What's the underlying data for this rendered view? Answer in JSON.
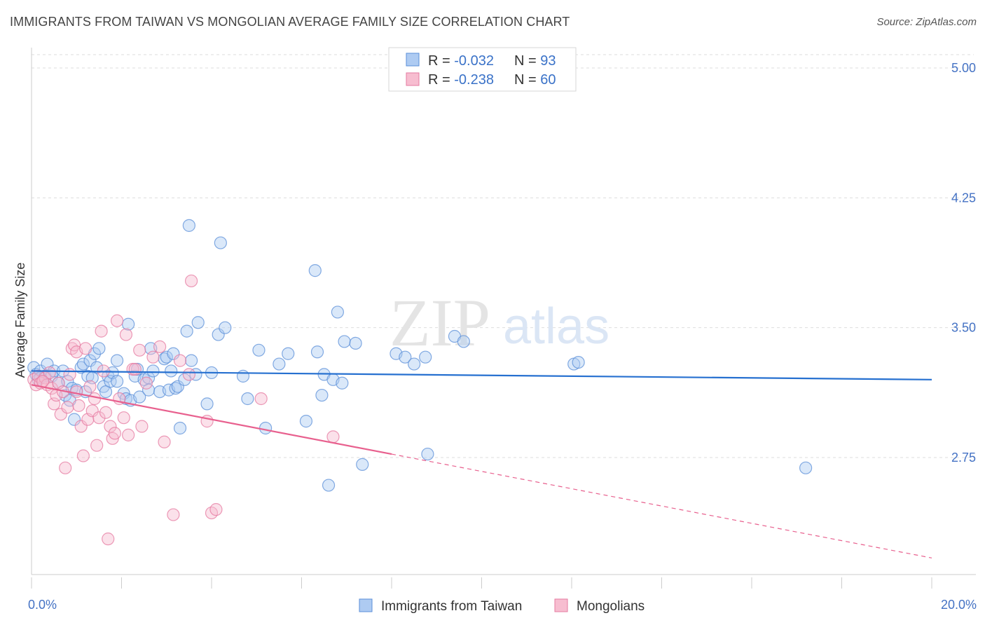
{
  "header": {
    "title": "IMMIGRANTS FROM TAIWAN VS MONGOLIAN AVERAGE FAMILY SIZE CORRELATION CHART",
    "source": "Source: ZipAtlas.com"
  },
  "watermark": {
    "zip": "ZIP",
    "atlas": "atlas"
  },
  "stats": [
    {
      "r_label": "R = ",
      "r_value": "-0.032",
      "n_label": "N = ",
      "n_value": "93"
    },
    {
      "r_label": "R = ",
      "r_value": "-0.238",
      "n_label": "N = ",
      "n_value": "60"
    }
  ],
  "colors": {
    "taiwan_fill": "#aecbf2",
    "taiwan_stroke": "#5b8fd8",
    "taiwan_line": "#2670d0",
    "mongol_fill": "#f7bdd0",
    "mongol_stroke": "#e57aa0",
    "mongol_line": "#e8608e",
    "grid": "#dddddd",
    "tick_text": "#4472c4"
  },
  "chart_data": {
    "type": "scatter",
    "title": "IMMIGRANTS FROM TAIWAN VS MONGOLIAN AVERAGE FAMILY SIZE CORRELATION CHART",
    "xlabel": "",
    "ylabel": "Average Family Size",
    "xlim": [
      0,
      20
    ],
    "ylim": [
      2.05,
      5.1
    ],
    "x_tick_labels": [
      "0.0%",
      "20.0%"
    ],
    "y_ticks": [
      2.75,
      3.5,
      4.25,
      5.0
    ],
    "y_tick_labels": [
      "2.75",
      "3.50",
      "4.25",
      "5.00"
    ],
    "grid": true,
    "legend_position": "bottom-center",
    "series": [
      {
        "name": "Immigrants from Taiwan",
        "color": "#5b8fd8",
        "trend": {
          "x": [
            0,
            20
          ],
          "y": [
            3.25,
            3.2
          ]
        },
        "points": [
          [
            0.05,
            3.27
          ],
          [
            0.1,
            3.23
          ],
          [
            0.15,
            3.2
          ],
          [
            0.2,
            3.25
          ],
          [
            0.3,
            3.22
          ],
          [
            0.35,
            3.29
          ],
          [
            0.45,
            3.22
          ],
          [
            0.5,
            3.25
          ],
          [
            0.6,
            3.18
          ],
          [
            0.7,
            3.25
          ],
          [
            0.75,
            3.11
          ],
          [
            0.8,
            3.19
          ],
          [
            0.85,
            3.08
          ],
          [
            0.9,
            3.15
          ],
          [
            0.95,
            2.97
          ],
          [
            1.0,
            3.14
          ],
          [
            1.1,
            3.27
          ],
          [
            1.15,
            3.29
          ],
          [
            1.2,
            3.13
          ],
          [
            1.25,
            3.22
          ],
          [
            1.3,
            3.31
          ],
          [
            1.4,
            3.35
          ],
          [
            1.45,
            3.27
          ],
          [
            1.5,
            3.38
          ],
          [
            1.6,
            3.16
          ],
          [
            1.65,
            3.13
          ],
          [
            1.7,
            3.22
          ],
          [
            1.75,
            3.19
          ],
          [
            1.8,
            3.24
          ],
          [
            1.9,
            3.19
          ],
          [
            1.9,
            3.31
          ],
          [
            2.05,
            3.12
          ],
          [
            2.1,
            3.09
          ],
          [
            2.15,
            3.52
          ],
          [
            2.2,
            3.08
          ],
          [
            2.3,
            3.22
          ],
          [
            2.35,
            3.26
          ],
          [
            2.4,
            3.1
          ],
          [
            2.5,
            3.2
          ],
          [
            2.6,
            3.21
          ],
          [
            2.6,
            3.14
          ],
          [
            2.65,
            3.38
          ],
          [
            2.7,
            3.25
          ],
          [
            2.85,
            3.13
          ],
          [
            2.95,
            3.32
          ],
          [
            3.0,
            3.33
          ],
          [
            3.05,
            3.14
          ],
          [
            3.1,
            3.25
          ],
          [
            3.15,
            3.35
          ],
          [
            3.2,
            3.15
          ],
          [
            3.25,
            3.16
          ],
          [
            3.3,
            2.92
          ],
          [
            3.4,
            3.2
          ],
          [
            3.45,
            3.48
          ],
          [
            3.5,
            4.09
          ],
          [
            3.55,
            3.31
          ],
          [
            3.65,
            3.23
          ],
          [
            3.7,
            3.53
          ],
          [
            3.9,
            3.06
          ],
          [
            4.0,
            3.24
          ],
          [
            4.15,
            3.46
          ],
          [
            4.2,
            3.99
          ],
          [
            4.3,
            3.5
          ],
          [
            4.7,
            3.22
          ],
          [
            4.8,
            3.09
          ],
          [
            5.05,
            3.37
          ],
          [
            5.2,
            2.92
          ],
          [
            5.5,
            3.29
          ],
          [
            5.7,
            3.35
          ],
          [
            6.1,
            2.96
          ],
          [
            6.3,
            3.83
          ],
          [
            6.35,
            3.36
          ],
          [
            6.45,
            3.11
          ],
          [
            6.5,
            3.23
          ],
          [
            6.6,
            2.59
          ],
          [
            6.7,
            3.2
          ],
          [
            6.8,
            3.59
          ],
          [
            6.9,
            3.18
          ],
          [
            6.95,
            3.42
          ],
          [
            7.2,
            3.41
          ],
          [
            7.35,
            2.71
          ],
          [
            8.1,
            3.35
          ],
          [
            8.3,
            3.33
          ],
          [
            8.5,
            3.29
          ],
          [
            8.75,
            3.33
          ],
          [
            8.8,
            2.77
          ],
          [
            9.4,
            3.45
          ],
          [
            9.6,
            3.42
          ],
          [
            12.05,
            3.29
          ],
          [
            12.15,
            3.3
          ],
          [
            17.2,
            2.69
          ],
          [
            0.2,
            3.21
          ],
          [
            1.35,
            3.21
          ]
        ]
      },
      {
        "name": "Mongolians",
        "color": "#e57aa0",
        "trend": {
          "x": [
            0,
            8.0
          ],
          "y": [
            3.17,
            2.77
          ],
          "dashed_x": [
            8.0,
            20
          ],
          "dashed_y": [
            2.77,
            2.17
          ]
        },
        "points": [
          [
            0.05,
            3.2
          ],
          [
            0.1,
            3.17
          ],
          [
            0.15,
            3.22
          ],
          [
            0.2,
            3.18
          ],
          [
            0.3,
            3.21
          ],
          [
            0.35,
            3.17
          ],
          [
            0.4,
            3.24
          ],
          [
            0.45,
            3.15
          ],
          [
            0.5,
            3.06
          ],
          [
            0.55,
            3.11
          ],
          [
            0.6,
            3.18
          ],
          [
            0.65,
            3.0
          ],
          [
            0.7,
            3.13
          ],
          [
            0.75,
            2.69
          ],
          [
            0.8,
            3.04
          ],
          [
            0.85,
            3.23
          ],
          [
            0.9,
            3.38
          ],
          [
            0.95,
            3.4
          ],
          [
            1.0,
            3.36
          ],
          [
            1.05,
            3.05
          ],
          [
            1.1,
            2.93
          ],
          [
            1.15,
            2.76
          ],
          [
            1.2,
            3.38
          ],
          [
            1.25,
            2.97
          ],
          [
            1.3,
            3.16
          ],
          [
            1.35,
            3.02
          ],
          [
            1.4,
            3.09
          ],
          [
            1.45,
            2.82
          ],
          [
            1.5,
            2.98
          ],
          [
            1.55,
            3.48
          ],
          [
            1.6,
            3.25
          ],
          [
            1.65,
            3.01
          ],
          [
            1.7,
            2.28
          ],
          [
            1.75,
            2.93
          ],
          [
            1.8,
            2.86
          ],
          [
            1.85,
            2.89
          ],
          [
            1.9,
            3.54
          ],
          [
            1.95,
            3.09
          ],
          [
            2.05,
            2.98
          ],
          [
            2.1,
            3.46
          ],
          [
            2.15,
            2.88
          ],
          [
            2.25,
            3.26
          ],
          [
            2.3,
            3.26
          ],
          [
            2.4,
            3.37
          ],
          [
            2.45,
            2.93
          ],
          [
            2.55,
            3.18
          ],
          [
            2.7,
            3.33
          ],
          [
            2.85,
            3.39
          ],
          [
            2.95,
            2.84
          ],
          [
            3.15,
            2.42
          ],
          [
            3.3,
            3.31
          ],
          [
            3.5,
            3.23
          ],
          [
            3.55,
            3.77
          ],
          [
            3.9,
            2.96
          ],
          [
            4.0,
            2.43
          ],
          [
            4.1,
            2.45
          ],
          [
            5.1,
            3.09
          ],
          [
            6.7,
            2.87
          ],
          [
            0.25,
            3.19
          ],
          [
            1.0,
            3.13
          ]
        ]
      }
    ]
  },
  "legend": {
    "items": [
      "Immigrants from Taiwan",
      "Mongolians"
    ]
  }
}
